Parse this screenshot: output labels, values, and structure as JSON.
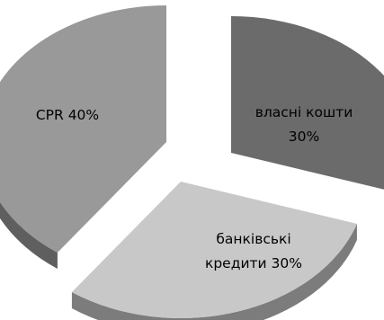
{
  "chart_data": {
    "type": "pie",
    "style": "3d-exploded",
    "slices": [
      {
        "category": "власні кошти",
        "label_lines": [
          "власні кошти",
          "30%"
        ],
        "value": 30,
        "color": "#6b6b6b"
      },
      {
        "category": "банківські кредити",
        "label_lines": [
          "банківські",
          "кредити 30%"
        ],
        "value": 30,
        "color": "#c8c8c8"
      },
      {
        "category": "CPR",
        "label_lines": [
          "CPR 40%"
        ],
        "value": 40,
        "color": "#999999"
      }
    ],
    "legend": "none"
  }
}
